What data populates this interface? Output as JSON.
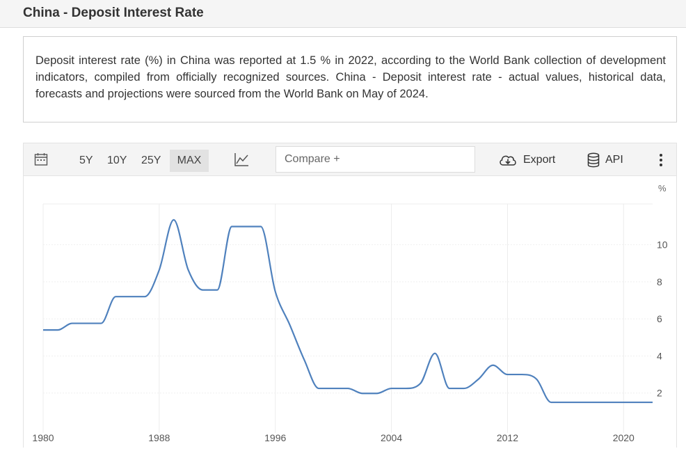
{
  "header": {
    "title": "China - Deposit Interest Rate"
  },
  "description": "Deposit interest rate (%) in China was reported at 1.5 % in 2022, according to the World Bank collection of development indicators, compiled from officially recognized sources. China - Deposit interest rate - actual values, historical data, forecasts and projections were sourced from the World Bank on May of 2024.",
  "toolbar": {
    "ranges": [
      "5Y",
      "10Y",
      "25Y",
      "MAX"
    ],
    "active_range": "MAX",
    "compare_placeholder": "Compare +",
    "export_label": "Export",
    "api_label": "API",
    "icons": {
      "calendar": "calendar-icon",
      "chart_type": "line-chart-icon",
      "export": "cloud-download-icon",
      "api": "database-icon",
      "more": "more-vertical-icon"
    }
  },
  "chart_data": {
    "type": "line",
    "title": "",
    "xlabel": "",
    "ylabel": "%",
    "series": [
      {
        "x": [
          1980,
          1981,
          1982,
          1983,
          1984,
          1985,
          1986,
          1987,
          1988,
          1989,
          1990,
          1991,
          1992,
          1993,
          1994,
          1995,
          1996,
          1997,
          1998,
          1999,
          2000,
          2001,
          2002,
          2003,
          2004,
          2005,
          2006,
          2007,
          2008,
          2009,
          2010,
          2011,
          2012,
          2013,
          2014,
          2015,
          2016,
          2017,
          2018,
          2019,
          2020,
          2021,
          2022
        ],
        "values": [
          5.4,
          5.4,
          5.76,
          5.76,
          5.76,
          7.2,
          7.2,
          7.2,
          8.64,
          11.34,
          8.64,
          7.56,
          7.56,
          10.98,
          10.98,
          10.98,
          7.47,
          5.67,
          3.78,
          2.25,
          2.25,
          2.25,
          1.98,
          1.98,
          2.25,
          2.25,
          2.52,
          4.14,
          2.25,
          2.25,
          2.75,
          3.5,
          3.0,
          3.0,
          2.75,
          1.5,
          1.5,
          1.5,
          1.5,
          1.5,
          1.5,
          1.5,
          1.5
        ],
        "color": "#4f81bd"
      }
    ],
    "x_ticks": [
      1980,
      1988,
      1996,
      2004,
      2012,
      2020
    ],
    "y_ticks": [
      2,
      4,
      6,
      8,
      10
    ],
    "xlim": [
      1980,
      2022
    ],
    "ylim": [
      0,
      12.2
    ],
    "grid": true,
    "y_axis_position": "right"
  }
}
